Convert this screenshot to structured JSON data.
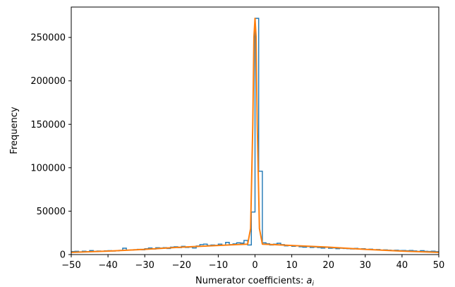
{
  "chart_data": {
    "type": "histogram",
    "xlabel": "Numerator coefficients: ",
    "xlabel_symbol": "a",
    "xlabel_subscript": "i",
    "ylabel": "Frequency",
    "xlim": [
      -50,
      50
    ],
    "ylim": [
      0,
      285000
    ],
    "xticks": [
      -50,
      -40,
      -30,
      -20,
      -10,
      0,
      10,
      20,
      30,
      40,
      50
    ],
    "xtick_labels": [
      "−50",
      "−40",
      "−30",
      "−20",
      "−10",
      "0",
      "10",
      "20",
      "30",
      "40",
      "50"
    ],
    "yticks": [
      0,
      50000,
      100000,
      150000,
      200000,
      250000
    ],
    "ytick_labels": [
      "0",
      "50000",
      "100000",
      "150000",
      "200000",
      "250000"
    ],
    "grid": false,
    "series": [
      {
        "kind": "step-histogram",
        "color": "#1f77b4",
        "bin_start": -50,
        "bin_width": 1,
        "values": [
          3500,
          3800,
          3200,
          3900,
          3400,
          4600,
          3700,
          4100,
          3900,
          4300,
          4500,
          4000,
          4200,
          4800,
          7300,
          5000,
          5200,
          5600,
          6000,
          5400,
          6700,
          7600,
          6400,
          7900,
          7600,
          8000,
          7000,
          8600,
          9000,
          8000,
          9500,
          8200,
          8600,
          7600,
          9900,
          11500,
          12000,
          10500,
          11000,
          10700,
          12000,
          10800,
          14000,
          11500,
          12300,
          13500,
          13200,
          16300,
          11000,
          49000,
          272000,
          96000,
          13500,
          12500,
          11000,
          12000,
          13000,
          11500,
          10000,
          10500,
          9500,
          10000,
          9000,
          8500,
          9200,
          8200,
          8700,
          8100,
          7500,
          8300,
          7300,
          7600,
          6800,
          7300,
          7000,
          6800,
          6500,
          7100,
          6200,
          6700,
          5900,
          6200,
          5500,
          5800,
          5100,
          5400,
          5100,
          4800,
          5000,
          4600,
          4700,
          4400,
          4700,
          4200,
          3700,
          4500,
          3800,
          3600,
          3900,
          3400
        ]
      },
      {
        "kind": "fit-line",
        "color": "#ff7f0e",
        "x": [
          -50,
          -40,
          -30,
          -20,
          -10,
          -5,
          -2,
          -1.2,
          -0.6,
          -0.3,
          0,
          0.3,
          0.6,
          1.2,
          2,
          5,
          10,
          20,
          30,
          40,
          50
        ],
        "y": [
          2500,
          4000,
          6000,
          8500,
          10500,
          11500,
          12000,
          30000,
          150000,
          250000,
          272000,
          250000,
          150000,
          30000,
          12000,
          11500,
          10500,
          8500,
          6000,
          4000,
          2500
        ]
      }
    ]
  }
}
